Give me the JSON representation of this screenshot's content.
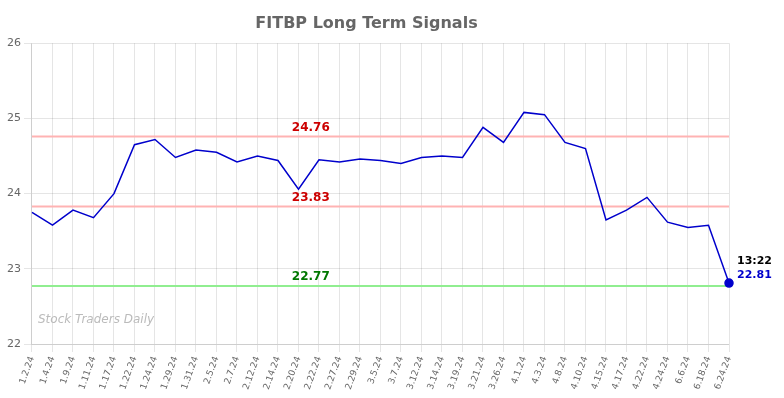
{
  "chart_data": {
    "type": "line",
    "title": "FITBP Long Term Signals",
    "categories": [
      "1.2.24",
      "1.4.24",
      "1.9.24",
      "1.11.24",
      "1.17.24",
      "1.22.24",
      "1.24.24",
      "1.29.24",
      "1.31.24",
      "2.5.24",
      "2.7.24",
      "2.12.24",
      "2.14.24",
      "2.20.24",
      "2.22.24",
      "2.27.24",
      "2.29.24",
      "3.5.24",
      "3.7.24",
      "3.12.24",
      "3.14.24",
      "3.19.24",
      "3.21.24",
      "3.26.24",
      "4.1.24",
      "4.3.24",
      "4.8.24",
      "4.10.24",
      "4.15.24",
      "4.17.24",
      "4.22.24",
      "4.24.24",
      "6.6.24",
      "6.18.24",
      "6.24.24"
    ],
    "values": [
      23.75,
      23.58,
      23.78,
      23.68,
      24.0,
      24.65,
      24.72,
      24.48,
      24.58,
      24.55,
      24.42,
      24.5,
      24.44,
      24.06,
      24.45,
      24.42,
      24.46,
      24.44,
      24.4,
      24.48,
      24.5,
      24.48,
      24.88,
      24.68,
      25.08,
      25.05,
      24.68,
      24.6,
      23.65,
      23.78,
      23.95,
      23.62,
      23.55,
      23.58,
      22.81
    ],
    "color": "#0000cc",
    "marker": "circle",
    "ylim": [
      22,
      26
    ],
    "yticks": [
      22,
      23,
      24,
      25,
      26
    ],
    "grid": true,
    "annotations": [
      {
        "text": "24.76",
        "y": 24.76,
        "color": "#cc0000",
        "line_color": "#ffb3b3"
      },
      {
        "text": "23.83",
        "y": 23.83,
        "color": "#cc0000",
        "line_color": "#ffb3b3"
      },
      {
        "text": "22.77",
        "y": 22.77,
        "color": "#007700",
        "line_color": "#90ee90"
      }
    ],
    "end_labels": [
      {
        "text": "13:22",
        "color": "#000000"
      },
      {
        "text": "22.81",
        "color": "#0000cc"
      }
    ],
    "watermark": {
      "text": "Stock Traders Daily",
      "color": "#bbbbbb"
    }
  }
}
